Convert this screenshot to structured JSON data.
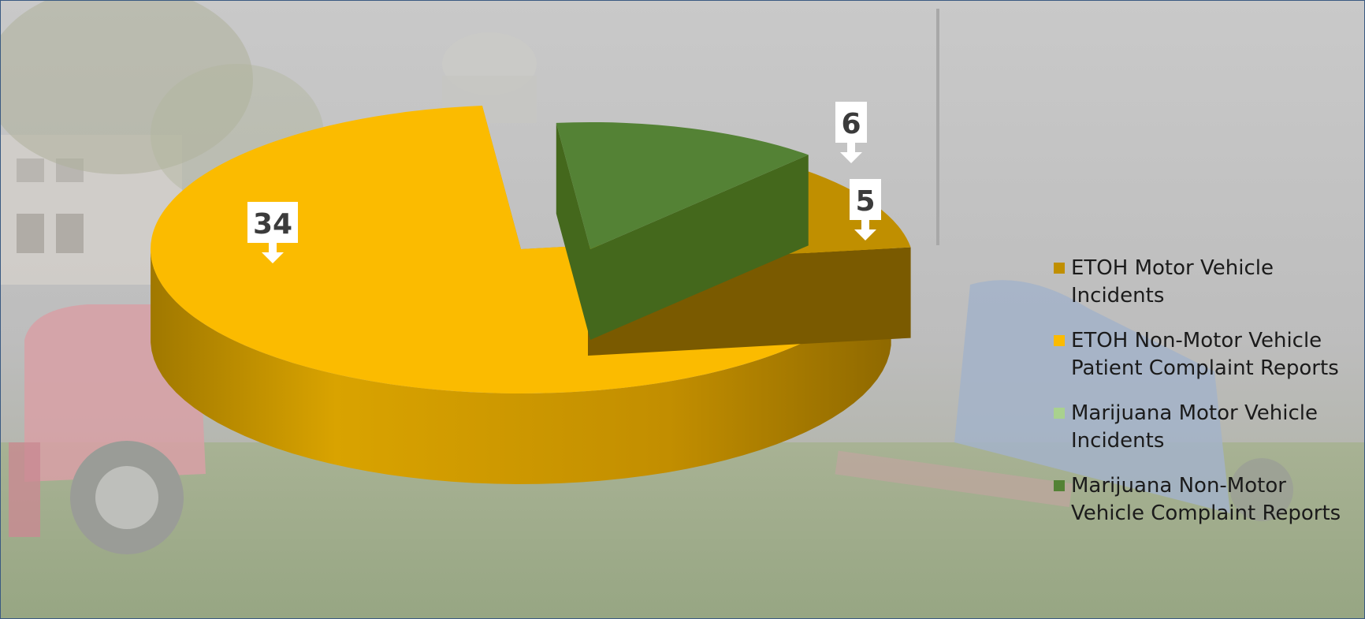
{
  "chart_data": {
    "type": "pie",
    "title": "",
    "style": "3d exploded pie with photo background",
    "slices": [
      {
        "name": "ETOH Motor Vehicle Incidents",
        "value": 5,
        "color": "#c08f00"
      },
      {
        "name": "ETOH Non-Motor Vehicle Patient Complaint Reports",
        "value": 34,
        "color": "#fbbb00"
      },
      {
        "name": "Marijuana Motor Vehicle Incidents",
        "value": 0,
        "color": "#a9d18e"
      },
      {
        "name": "Marijuana Non-Motor Vehicle Complaint Reports",
        "value": 6,
        "color": "#548235"
      }
    ],
    "data_labels": [
      "5",
      "34",
      "",
      "6"
    ],
    "legend": {
      "position": "right",
      "items": [
        {
          "label": "ETOH Motor Vehicle\nIncidents",
          "color": "#c08f00"
        },
        {
          "label": "ETOH Non-Motor Vehicle\nPatient Complaint Reports",
          "color": "#fbbb00"
        },
        {
          "label": "Marijuana Motor Vehicle\nIncidents",
          "color": "#a9d18e"
        },
        {
          "label": "Marijuana Non-Motor\nVehicle Complaint Reports",
          "color": "#548235"
        }
      ]
    }
  }
}
